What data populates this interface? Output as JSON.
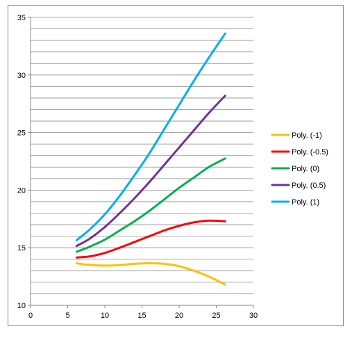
{
  "chart_data": {
    "type": "line",
    "title": "",
    "xlabel": "",
    "ylabel": "",
    "xlim": [
      0,
      30
    ],
    "ylim": [
      10,
      35
    ],
    "x_ticks": [
      0,
      5,
      10,
      15,
      20,
      25,
      30
    ],
    "y_ticks": [
      10,
      15,
      20,
      25,
      30,
      35
    ],
    "grid": "horizontal, every 1 unit",
    "legend_position": "right",
    "series": [
      {
        "name": "Poly. (-1)",
        "color": "#FFC000",
        "x": [
          6.2,
          8,
          10,
          12,
          14,
          16,
          18,
          20,
          22,
          24,
          26.2
        ],
        "y": [
          13.65,
          13.5,
          13.45,
          13.5,
          13.6,
          13.65,
          13.6,
          13.4,
          13.0,
          12.5,
          11.8
        ]
      },
      {
        "name": "Poly. (-0.5)",
        "color": "#FF0000",
        "x": [
          6.2,
          8,
          10,
          12,
          14,
          16,
          18,
          20,
          22,
          24,
          26.2
        ],
        "y": [
          14.15,
          14.25,
          14.55,
          15.0,
          15.5,
          16.0,
          16.5,
          16.9,
          17.2,
          17.35,
          17.3
        ]
      },
      {
        "name": "Poly. (0)",
        "color": "#00B050",
        "x": [
          6.2,
          8,
          10,
          12,
          14,
          16,
          18,
          20,
          22,
          24,
          26.2
        ],
        "y": [
          14.65,
          15.1,
          15.7,
          16.5,
          17.3,
          18.2,
          19.2,
          20.2,
          21.1,
          22.0,
          22.75
        ]
      },
      {
        "name": "Poly. (0.5)",
        "color": "#7030A0",
        "x": [
          6.2,
          8,
          10,
          12,
          14,
          16,
          18,
          20,
          22,
          24,
          26.2
        ],
        "y": [
          15.15,
          15.8,
          16.8,
          18.0,
          19.3,
          20.7,
          22.2,
          23.7,
          25.2,
          26.7,
          28.2
        ]
      },
      {
        "name": "Poly. (1)",
        "color": "#00B0F0",
        "x": [
          6.2,
          8,
          10,
          12,
          14,
          16,
          18,
          20,
          22,
          24,
          26.2
        ],
        "y": [
          15.65,
          16.6,
          17.9,
          19.5,
          21.3,
          23.2,
          25.3,
          27.4,
          29.5,
          31.5,
          33.6
        ]
      }
    ]
  }
}
